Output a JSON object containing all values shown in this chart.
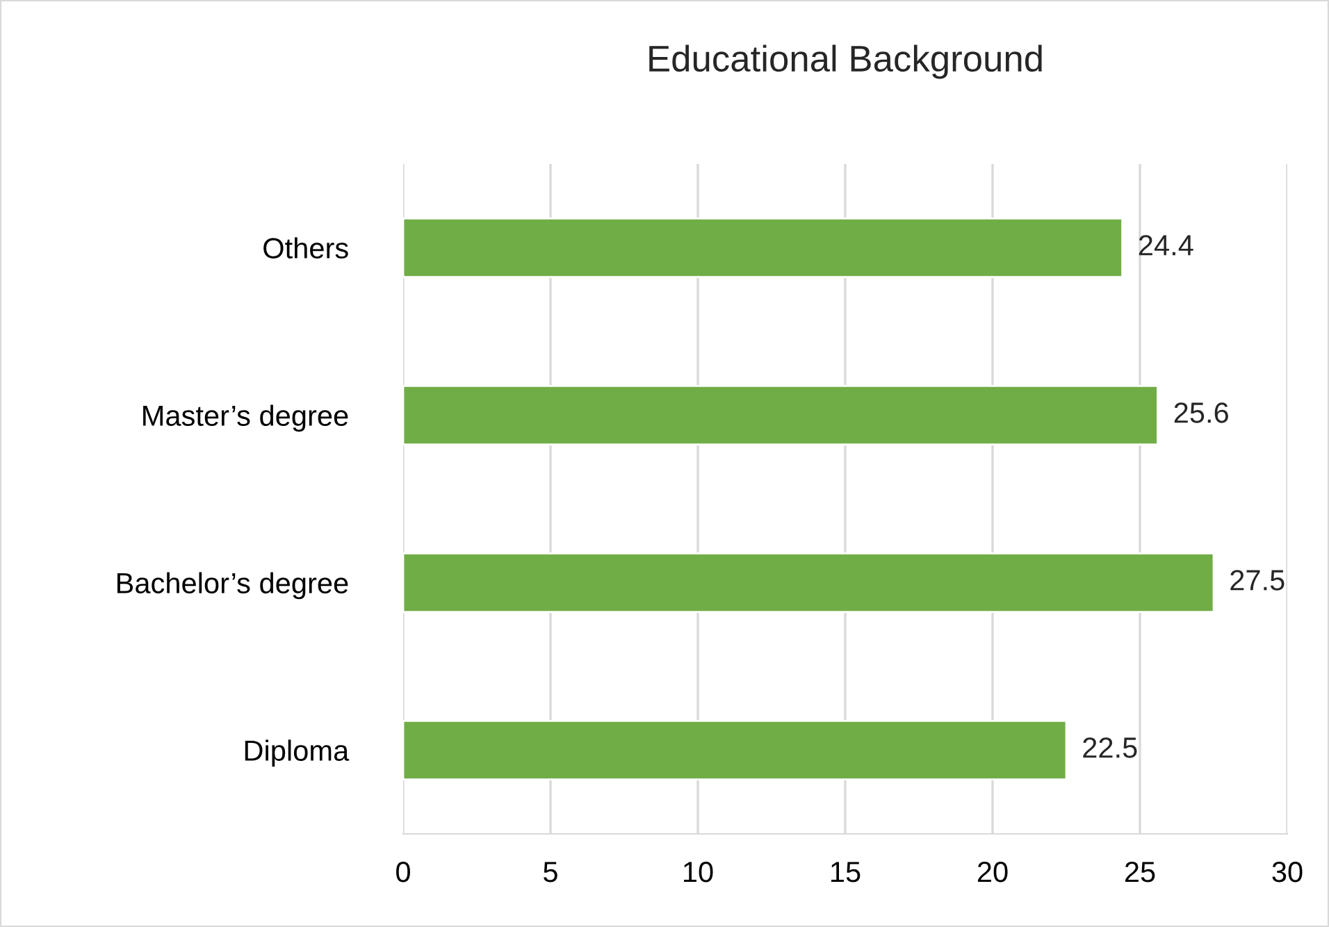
{
  "chart_data": {
    "type": "bar",
    "orientation": "horizontal",
    "title": "Educational Background",
    "categories": [
      "Others",
      "Master’s degree",
      "Bachelor’s degree",
      "Diploma"
    ],
    "values": [
      24.4,
      25.6,
      27.5,
      22.5
    ],
    "color": "#70ad47",
    "xlim": [
      0,
      30
    ],
    "xticks": [
      0,
      5,
      10,
      15,
      20,
      25,
      30
    ],
    "grid": "x",
    "data_labels": true
  }
}
